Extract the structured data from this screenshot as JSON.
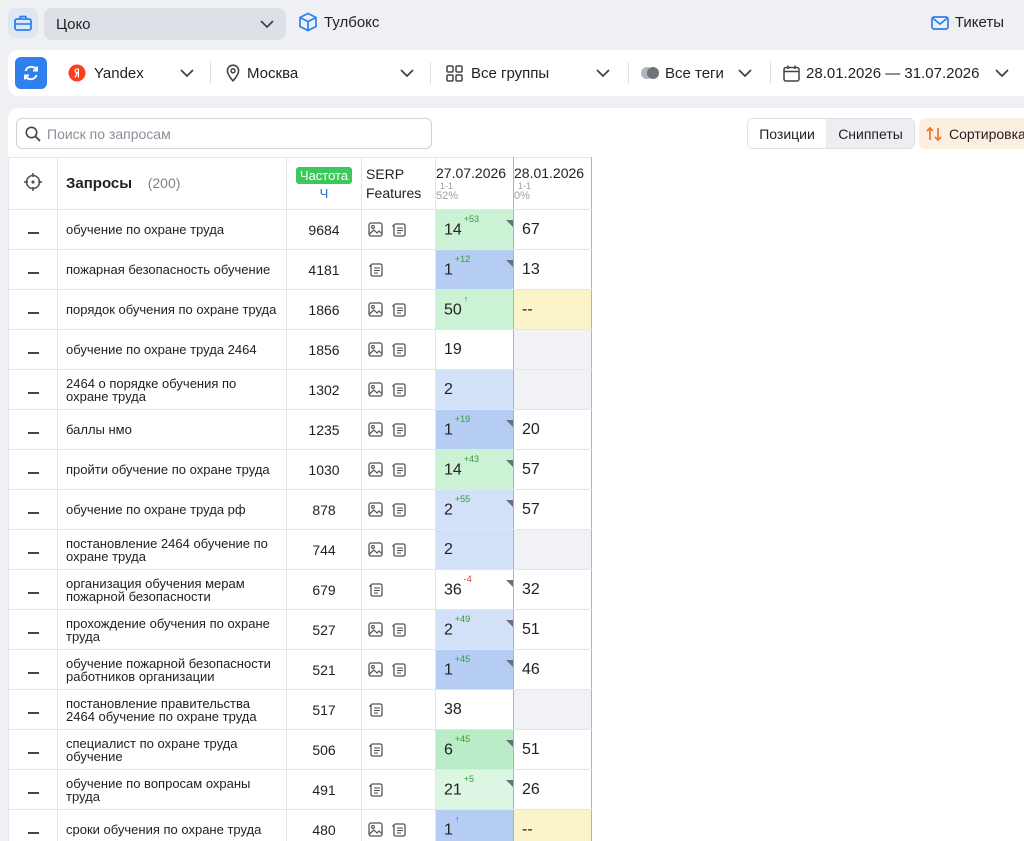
{
  "topbar": {
    "project": "Цоко",
    "toolbox": "Тулбокс",
    "tickets": "Тикеты"
  },
  "filters": {
    "engine": "Yandex",
    "region": "Москва",
    "groups": "Все группы",
    "tags": "Все теги",
    "dates": "28.01.2026 — 31.07.2026"
  },
  "colors": {
    "accent": "#2f80ed",
    "frequency_badge": "#3cc85a"
  },
  "search": {
    "placeholder": "Поиск по запросам"
  },
  "view_tabs": {
    "positions": "Позиции",
    "snippets": "Сниппеты",
    "sort": "Сортировка"
  },
  "table": {
    "header": {
      "queries": "Запросы",
      "count": "(200)",
      "frequency": "Частота",
      "frequency_sub": "Ч",
      "serp": "SERP Features",
      "date1": "27.07.2026",
      "date1_range": "1-1",
      "date1_pct": "52%",
      "date2": "28.01.2026",
      "date2_range": "1-1",
      "date2_pct": "0%"
    },
    "rows": [
      {
        "q": "обучение по охране труда",
        "f": "9684",
        "img": true,
        "p1": "14",
        "d1": "+53",
        "c1": "green",
        "p2": "67",
        "c2": "white"
      },
      {
        "q": "пожарная безопасность обучение",
        "f": "4181",
        "img": false,
        "p1": "1",
        "d1": "+12",
        "c1": "blue",
        "p2": "13",
        "c2": "white"
      },
      {
        "q": "порядок обучения по охране труда",
        "f": "1866",
        "img": true,
        "p1": "50",
        "d1": "↑",
        "c1": "green",
        "p2": "--",
        "c2": "yellow"
      },
      {
        "q": "обучение по охране труда 2464",
        "f": "1856",
        "img": true,
        "p1": "19",
        "d1": "",
        "c1": "white",
        "p2": "",
        "c2": "gray"
      },
      {
        "q": "2464 о порядке обучения по охране труда",
        "f": "1302",
        "img": true,
        "p1": "2",
        "d1": "",
        "c1": "lightblue",
        "p2": "",
        "c2": "gray"
      },
      {
        "q": "баллы нмо",
        "f": "1235",
        "img": true,
        "p1": "1",
        "d1": "+19",
        "c1": "blue",
        "p2": "20",
        "c2": "white"
      },
      {
        "q": "пройти обучение по охране труда",
        "f": "1030",
        "img": true,
        "p1": "14",
        "d1": "+43",
        "c1": "green",
        "p2": "57",
        "c2": "white"
      },
      {
        "q": "обучение по охране труда рф",
        "f": "878",
        "img": true,
        "p1": "2",
        "d1": "+55",
        "c1": "lightblue",
        "p2": "57",
        "c2": "white"
      },
      {
        "q": "постановление 2464 обучение по охране труда",
        "f": "744",
        "img": true,
        "p1": "2",
        "d1": "",
        "c1": "lightblue",
        "p2": "",
        "c2": "gray"
      },
      {
        "q": "организация обучения мерам пожарной безопасности",
        "f": "679",
        "img": false,
        "p1": "36",
        "d1": "-4",
        "c1": "white",
        "p2": "32",
        "c2": "white"
      },
      {
        "q": "прохождение обучения по охране труда",
        "f": "527",
        "img": true,
        "p1": "2",
        "d1": "+49",
        "c1": "lightblue",
        "p2": "51",
        "c2": "white"
      },
      {
        "q": "обучение пожарной безопасности работников организации",
        "f": "521",
        "img": true,
        "p1": "1",
        "d1": "+45",
        "c1": "blue",
        "p2": "46",
        "c2": "white"
      },
      {
        "q": "постановление правительства 2464 обучение по охране труда",
        "f": "517",
        "img": false,
        "p1": "38",
        "d1": "",
        "c1": "white",
        "p2": "",
        "c2": "gray"
      },
      {
        "q": "специалист по охране труда обучение",
        "f": "506",
        "img": false,
        "p1": "6",
        "d1": "+45",
        "c1": "green2",
        "p2": "51",
        "c2": "white"
      },
      {
        "q": "обучение по вопросам охраны труда",
        "f": "491",
        "img": false,
        "p1": "21",
        "d1": "+5",
        "c1": "lightgreen",
        "p2": "26",
        "c2": "white"
      },
      {
        "q": "сроки обучения по охране труда",
        "f": "480",
        "img": true,
        "p1": "1",
        "d1": "↑",
        "c1": "blue",
        "p2": "--",
        "c2": "yellow"
      }
    ]
  }
}
